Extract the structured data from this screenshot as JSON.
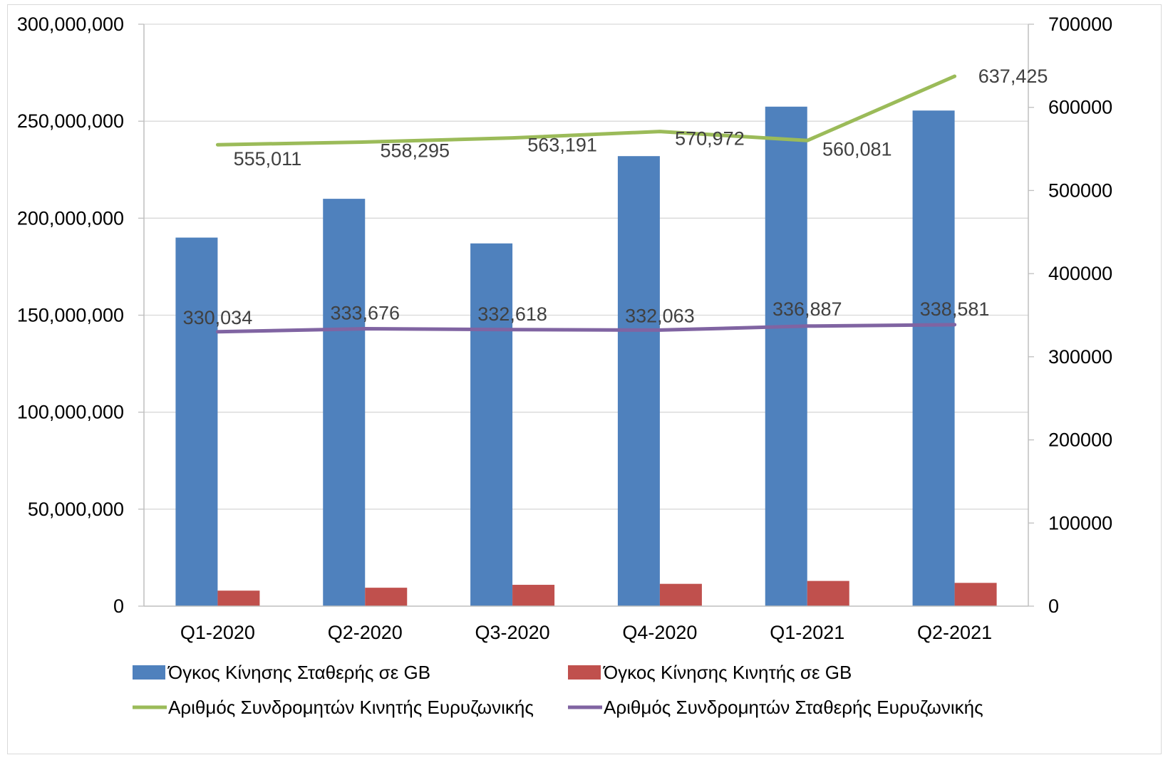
{
  "chart_data": {
    "type": "bar",
    "categories": [
      "Q1-2020",
      "Q2-2020",
      "Q3-2020",
      "Q4-2020",
      "Q1-2021",
      "Q2-2021"
    ],
    "y_left": {
      "min": 0,
      "max": 300000000,
      "step": 50000000,
      "tick_labels": [
        "0",
        "50,000,000",
        "100,000,000",
        "150,000,000",
        "200,000,000",
        "250,000,000",
        "300,000,000"
      ]
    },
    "y_right": {
      "min": 0,
      "max": 700000,
      "step": 100000,
      "tick_labels": [
        "0",
        "100000",
        "200000",
        "300000",
        "400000",
        "500000",
        "600000",
        "700000"
      ]
    },
    "grid": true,
    "legend_position": "bottom",
    "series": [
      {
        "name": "Όγκος Κίνησης Σταθερής σε GB",
        "type": "bar",
        "axis": "left",
        "color": "#4f81bd",
        "values": [
          190000000,
          210000000,
          187000000,
          232000000,
          257500000,
          255500000
        ]
      },
      {
        "name": "Όγκος Κίνησης Κινητής σε GB",
        "type": "bar",
        "axis": "left",
        "color": "#c0504d",
        "values": [
          8000000,
          9500000,
          11000000,
          11500000,
          13000000,
          12000000
        ]
      },
      {
        "name": "Αριθμός Συνδρομητών Κινητής Ευρυζωνικής",
        "type": "line",
        "axis": "right",
        "color": "#9bbb59",
        "values": [
          555011,
          558295,
          563191,
          570972,
          560081,
          637425
        ],
        "labels": [
          "555,011",
          "558,295",
          "563,191",
          "570,972",
          "560,081",
          "637,425"
        ]
      },
      {
        "name": "Αριθμός Συνδρομητών Σταθερής Ευρυζωνικής",
        "type": "line",
        "axis": "right",
        "color": "#8064a2",
        "values": [
          330034,
          333676,
          332618,
          332063,
          336887,
          338581
        ],
        "labels": [
          "330,034",
          "333,676",
          "332,618",
          "332,063",
          "336,887",
          "338,581"
        ]
      }
    ]
  }
}
